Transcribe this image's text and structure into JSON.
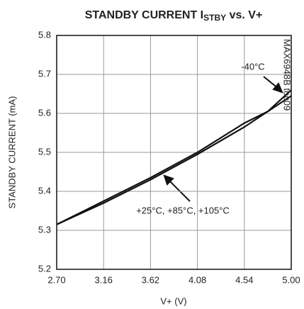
{
  "chart_data": {
    "type": "line",
    "title_parts": [
      "STANDBY CURRENT I",
      "STBY",
      " vs. V+"
    ],
    "x_label": "V+ (V)",
    "y_label": "STANDBY CURRENT (mA)",
    "side_note": "MAX6948B toc09",
    "x": [
      2.7,
      3.16,
      3.62,
      4.08,
      4.54,
      4.77,
      5.0
    ],
    "series": [
      {
        "name": "-40°C",
        "color": "#111111",
        "values": [
          5.315,
          5.37,
          5.43,
          5.495,
          5.565,
          5.605,
          5.66
        ]
      },
      {
        "name": "+25°C, +85°C, +105°C",
        "color": "#111111",
        "values": [
          5.315,
          5.375,
          5.435,
          5.5,
          5.575,
          5.605,
          5.645
        ]
      }
    ],
    "xlim": [
      2.7,
      5.0
    ],
    "ylim": [
      5.2,
      5.8
    ],
    "xticks": [
      {
        "value": 2.7,
        "label": "2.70"
      },
      3.16,
      3.62,
      4.08,
      4.54,
      {
        "value": 5.0,
        "label": "5.00"
      }
    ],
    "yticks": [
      5.2,
      5.3,
      5.4,
      5.5,
      5.6,
      5.7,
      5.8
    ],
    "grid": true
  }
}
